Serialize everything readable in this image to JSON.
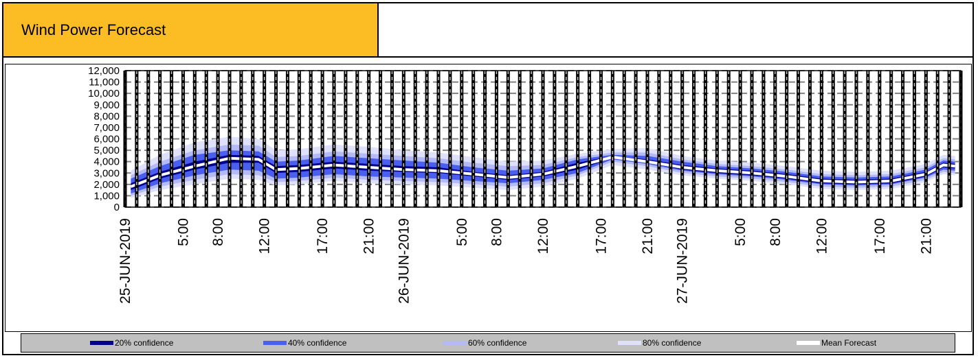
{
  "header": {
    "title": "Wind Power Forecast"
  },
  "colors": {
    "title_bg": "#fbbc24",
    "band20": "#00008b",
    "band40": "#4a5ef0",
    "band60": "#b4baf6",
    "band80": "#dfe1fa",
    "mean": "#ffffff"
  },
  "chart_data": {
    "type": "area",
    "title": "",
    "xlabel": "",
    "ylabel": "",
    "ylim": [
      0,
      12000
    ],
    "yticks": [
      "0",
      "1,000",
      "2,000",
      "3,000",
      "4,000",
      "5,000",
      "6,000",
      "7,000",
      "8,000",
      "9,000",
      "10,000",
      "11,000",
      "12,000"
    ],
    "xlim": [
      0,
      72
    ],
    "xticks": [
      {
        "label": "25-JUN-2019",
        "hour": 0
      },
      {
        "label": "5:00",
        "hour": 5
      },
      {
        "label": "8:00",
        "hour": 8
      },
      {
        "label": "12:00",
        "hour": 12
      },
      {
        "label": "17:00",
        "hour": 17
      },
      {
        "label": "21:00",
        "hour": 21
      },
      {
        "label": "26-JUN-2019",
        "hour": 24
      },
      {
        "label": "5:00",
        "hour": 29
      },
      {
        "label": "8:00",
        "hour": 32
      },
      {
        "label": "12:00",
        "hour": 36
      },
      {
        "label": "17:00",
        "hour": 41
      },
      {
        "label": "21:00",
        "hour": 45
      },
      {
        "label": "27-JUN-2019",
        "hour": 48
      },
      {
        "label": "5:00",
        "hour": 53
      },
      {
        "label": "8:00",
        "hour": 56
      },
      {
        "label": "12:00",
        "hour": 60
      },
      {
        "label": "17:00",
        "hour": 65
      },
      {
        "label": "21:00",
        "hour": 69
      }
    ],
    "grid": true,
    "legend_position": "bottom",
    "x": [
      0.5,
      3,
      6,
      9,
      11.5,
      13,
      15,
      18,
      21,
      24,
      27,
      30,
      33,
      36,
      39,
      42,
      45,
      48,
      51,
      54,
      57,
      60,
      63,
      66,
      69,
      70.5,
      71.5
    ],
    "mean": [
      1800,
      2800,
      3600,
      4300,
      4200,
      3300,
      3400,
      3700,
      3500,
      3300,
      3200,
      2900,
      2600,
      2900,
      3600,
      4400,
      4000,
      3500,
      3200,
      3000,
      2700,
      2300,
      2200,
      2300,
      2900,
      3700,
      3600
    ],
    "series": [
      {
        "name": "20% confidence",
        "lower": [
          1500,
          2500,
          3300,
          3900,
          3900,
          3000,
          3100,
          3400,
          3200,
          3100,
          3000,
          2700,
          2400,
          2700,
          3300,
          4300,
          3900,
          3300,
          3000,
          2800,
          2500,
          2100,
          2000,
          2100,
          2700,
          3500,
          3400
        ],
        "upper": [
          2100,
          3100,
          4000,
          4600,
          4500,
          3600,
          3700,
          4000,
          3800,
          3600,
          3500,
          3100,
          2800,
          3100,
          3900,
          4500,
          4200,
          3700,
          3400,
          3200,
          2900,
          2500,
          2400,
          2500,
          3100,
          3900,
          3800
        ]
      },
      {
        "name": "40% confidence",
        "lower": [
          1200,
          2100,
          2800,
          3300,
          3200,
          2500,
          2600,
          2900,
          2700,
          2600,
          2500,
          2300,
          2100,
          2400,
          3000,
          4200,
          3800,
          3200,
          2900,
          2700,
          2400,
          2000,
          1900,
          2000,
          2600,
          3300,
          3200
        ],
        "upper": [
          2500,
          3600,
          4600,
          5000,
          4900,
          4000,
          4100,
          4500,
          4300,
          4100,
          3900,
          3500,
          3200,
          3400,
          4200,
          4600,
          4500,
          4000,
          3600,
          3400,
          3100,
          2700,
          2600,
          2700,
          3300,
          4100,
          4000
        ]
      },
      {
        "name": "60% confidence",
        "lower": [
          1000,
          1800,
          2400,
          2900,
          2800,
          2200,
          2300,
          2600,
          2400,
          2300,
          2200,
          2000,
          1800,
          2100,
          2800,
          4000,
          3600,
          3000,
          2700,
          2500,
          2200,
          1800,
          1700,
          1800,
          2400,
          3100,
          3000
        ],
        "upper": [
          2800,
          4000,
          5000,
          5500,
          5400,
          4400,
          4500,
          4900,
          4700,
          4500,
          4300,
          3900,
          3600,
          3700,
          4400,
          4800,
          4800,
          4200,
          3800,
          3600,
          3300,
          2900,
          2800,
          2900,
          3500,
          4300,
          4200
        ]
      },
      {
        "name": "80% confidence",
        "lower": [
          800,
          1500,
          2000,
          2500,
          2400,
          1900,
          2000,
          2300,
          2100,
          2000,
          1900,
          1700,
          1500,
          1800,
          2500,
          3700,
          3300,
          2800,
          2500,
          2300,
          2000,
          1600,
          1500,
          1600,
          2200,
          2900,
          2800
        ],
        "upper": [
          3200,
          4600,
          5700,
          6200,
          6000,
          5000,
          5100,
          5500,
          5300,
          5000,
          4800,
          4400,
          4000,
          4100,
          4700,
          5100,
          5200,
          4500,
          4100,
          3900,
          3600,
          3200,
          3100,
          3200,
          3800,
          4600,
          4500
        ]
      }
    ],
    "legend": [
      "20% confidence",
      "40% confidence",
      "60% confidence",
      "80% confidence",
      "Mean Forecast"
    ]
  }
}
